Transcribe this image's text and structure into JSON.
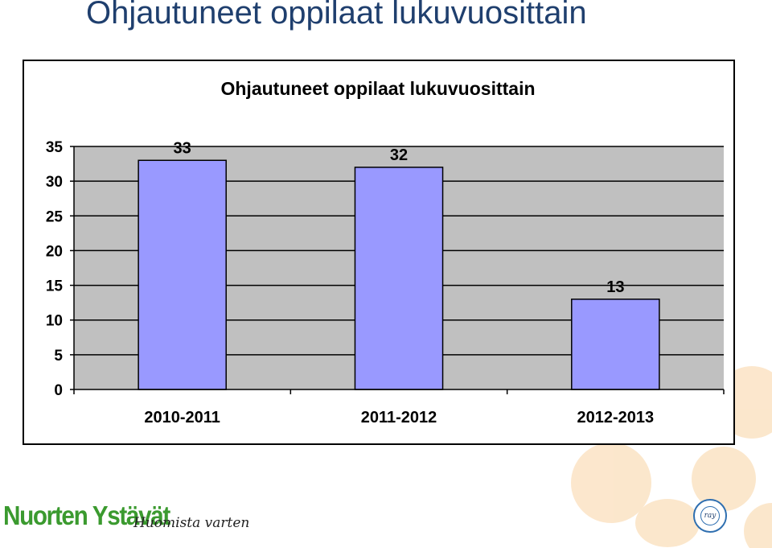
{
  "slide": {
    "title": "Ohjautuneet oppilaat lukuvuosittain"
  },
  "branding": {
    "logo_text": "Nuorten Ystävät",
    "slogan": "Huomista varten",
    "seal_text": "ray"
  },
  "colors": {
    "title": "#1f3f6e",
    "bar_fill": "#9999ff",
    "plot_bg": "#c0c0c0",
    "brand_green": "#3b9a2f",
    "deco_flower": "#fbe3c4"
  },
  "chart_data": {
    "type": "bar",
    "title": "Ohjautuneet oppilaat lukuvuosittain",
    "categories": [
      "2010-2011",
      "2011-2012",
      "2012-2013"
    ],
    "values": [
      33,
      32,
      13
    ],
    "data_labels": [
      "33",
      "32",
      "13"
    ],
    "yticks": [
      "0",
      "5",
      "10",
      "15",
      "20",
      "25",
      "30",
      "35"
    ],
    "ylim": [
      0,
      35
    ],
    "grid": true,
    "legend": "none"
  }
}
